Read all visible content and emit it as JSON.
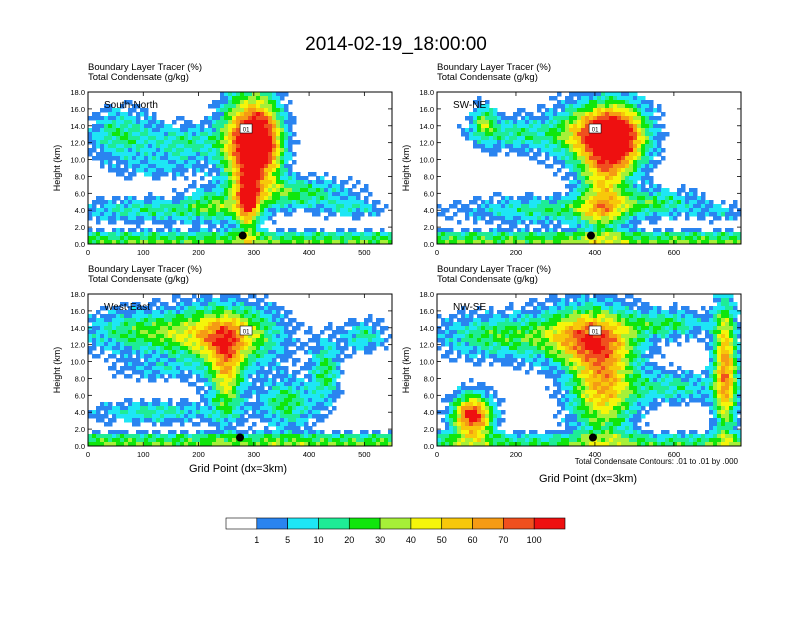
{
  "title": "2014-02-19_18:00:00",
  "panel_label_top": "Boundary Layer Tracer   (%)",
  "panel_label_bottom": "Total Condensate   (g/kg)",
  "ylabel": "Height (km)",
  "xlabel": "Grid Point (dx=3km)",
  "contour_note": "Total Condensate Contours: .01 to .01 by .000",
  "contour_label": "01",
  "colors": {
    "white": "#ffffff",
    "blue": "#2a84f0",
    "cyan": "#1ee6f5",
    "teal": "#1eec96",
    "green": "#10e60c",
    "lime": "#a6f038",
    "yellow": "#f5f50a",
    "gold": "#f7c80a",
    "orange": "#f59b14",
    "red_orange": "#f0501e",
    "red": "#ee1010"
  },
  "colorbar": {
    "labels": [
      "1",
      "5",
      "10",
      "20",
      "30",
      "40",
      "50",
      "60",
      "70",
      "100"
    ],
    "colors": [
      "#ffffff",
      "#2a84f0",
      "#1ee6f5",
      "#1eec96",
      "#10e60c",
      "#a6f038",
      "#f5f50a",
      "#f7c80a",
      "#f59b14",
      "#f0501e",
      "#ee1010"
    ]
  },
  "chart_data": [
    {
      "type": "heatmap",
      "name": "South-North",
      "xlim": [
        0,
        550
      ],
      "ylim": [
        0,
        18
      ],
      "xticks": [
        "0",
        "100",
        "200",
        "300",
        "400",
        "500"
      ],
      "xtick_values": [
        0,
        100,
        200,
        300,
        400,
        500
      ],
      "yticks": [
        "0.0",
        "2.0",
        "4.0",
        "6.0",
        "8.0",
        "10.0",
        "12.0",
        "14.0",
        "16.0",
        "18.0"
      ],
      "ytick_values": [
        0,
        2,
        4,
        6,
        8,
        10,
        12,
        14,
        16,
        18
      ],
      "marker": {
        "x": 280,
        "y": 1.0
      },
      "features": [
        {
          "type": "layer",
          "y0": 0.1,
          "y1": 1.2,
          "x0": 0,
          "x1": 550,
          "amp": 3
        },
        {
          "type": "blob",
          "x": 60,
          "y": 13,
          "rx": 60,
          "ry": 3,
          "amp": 2.2
        },
        {
          "type": "blob",
          "x": 180,
          "y": 12,
          "rx": 70,
          "ry": 2.2,
          "amp": 2.0
        },
        {
          "type": "blob",
          "x": 130,
          "y": 9,
          "rx": 80,
          "ry": 1.3,
          "amp": 1.0
        },
        {
          "type": "blob",
          "x": 100,
          "y": 4,
          "rx": 120,
          "ry": 1.4,
          "amp": 2.0
        },
        {
          "type": "blob",
          "x": 230,
          "y": 4.5,
          "rx": 60,
          "ry": 2,
          "amp": 2.2
        },
        {
          "type": "blob",
          "x": 280,
          "y": 12,
          "rx": 40,
          "ry": 6,
          "amp": 5
        },
        {
          "type": "blob",
          "x": 320,
          "y": 12,
          "rx": 35,
          "ry": 5,
          "amp": 5.5
        },
        {
          "type": "blob",
          "x": 290,
          "y": 5,
          "rx": 20,
          "ry": 4,
          "amp": 4
        },
        {
          "type": "blob",
          "x": 380,
          "y": 6,
          "rx": 90,
          "ry": 1.8,
          "amp": 2.5
        },
        {
          "type": "blob",
          "x": 480,
          "y": 4.2,
          "rx": 50,
          "ry": 1,
          "amp": 1.6
        }
      ]
    },
    {
      "type": "heatmap",
      "name": "SW-NE",
      "xlim": [
        0,
        770
      ],
      "ylim": [
        0,
        18
      ],
      "xticks": [
        "0",
        "200",
        "400",
        "600"
      ],
      "xtick_values": [
        0,
        200,
        400,
        600
      ],
      "yticks": [
        "0.0",
        "2.0",
        "4.0",
        "6.0",
        "8.0",
        "10.0",
        "12.0",
        "14.0",
        "16.0",
        "18.0"
      ],
      "ytick_values": [
        0,
        2,
        4,
        6,
        8,
        10,
        12,
        14,
        16,
        18
      ],
      "marker": {
        "x": 390,
        "y": 1.0
      },
      "features": [
        {
          "type": "layer",
          "y0": 0.1,
          "y1": 1.4,
          "x0": 0,
          "x1": 770,
          "amp": 3
        },
        {
          "type": "blob",
          "x": 200,
          "y": 13,
          "rx": 110,
          "ry": 2,
          "amp": 2.0
        },
        {
          "type": "blob",
          "x": 120,
          "y": 14.5,
          "rx": 30,
          "ry": 2,
          "amp": 2.5
        },
        {
          "type": "blob",
          "x": 400,
          "y": 13,
          "rx": 100,
          "ry": 3.5,
          "amp": 4.5
        },
        {
          "type": "blob",
          "x": 460,
          "y": 12.5,
          "rx": 70,
          "ry": 4,
          "amp": 5
        },
        {
          "type": "blob",
          "x": 420,
          "y": 6,
          "rx": 60,
          "ry": 5,
          "amp": 3.5
        },
        {
          "type": "blob",
          "x": 300,
          "y": 4,
          "rx": 230,
          "ry": 1.6,
          "amp": 2.2
        },
        {
          "type": "blob",
          "x": 560,
          "y": 5,
          "rx": 110,
          "ry": 1.5,
          "amp": 2.0
        },
        {
          "type": "blob",
          "x": 720,
          "y": 3.8,
          "rx": 60,
          "ry": 1,
          "amp": 1.2
        }
      ]
    },
    {
      "type": "heatmap",
      "name": "West-East",
      "xlim": [
        0,
        550
      ],
      "ylim": [
        0,
        18
      ],
      "xticks": [
        "0",
        "100",
        "200",
        "300",
        "400",
        "500"
      ],
      "xtick_values": [
        0,
        100,
        200,
        300,
        400,
        500
      ],
      "yticks": [
        "0.0",
        "2.0",
        "4.0",
        "6.0",
        "8.0",
        "10.0",
        "12.0",
        "14.0",
        "16.0",
        "18.0"
      ],
      "ytick_values": [
        0,
        2,
        4,
        6,
        8,
        10,
        12,
        14,
        16,
        18
      ],
      "marker": {
        "x": 275,
        "y": 1.0
      },
      "features": [
        {
          "type": "layer",
          "y0": 0.1,
          "y1": 1.4,
          "x0": 0,
          "x1": 550,
          "amp": 3
        },
        {
          "type": "blob",
          "x": 100,
          "y": 13.5,
          "rx": 110,
          "ry": 2.5,
          "amp": 2.5
        },
        {
          "type": "blob",
          "x": 250,
          "y": 13,
          "rx": 90,
          "ry": 3.5,
          "amp": 4.5
        },
        {
          "type": "blob",
          "x": 250,
          "y": 8,
          "rx": 30,
          "ry": 5,
          "amp": 3.5
        },
        {
          "type": "blob",
          "x": 120,
          "y": 4,
          "rx": 110,
          "ry": 1.3,
          "amp": 2.0
        },
        {
          "type": "blob",
          "x": 360,
          "y": 5,
          "rx": 50,
          "ry": 3,
          "amp": 2.5
        },
        {
          "type": "blob",
          "x": 430,
          "y": 9,
          "rx": 25,
          "ry": 3.5,
          "amp": 2.5
        },
        {
          "type": "blob",
          "x": 500,
          "y": 13,
          "rx": 40,
          "ry": 1.8,
          "amp": 2.0
        },
        {
          "type": "blob",
          "x": 120,
          "y": 9,
          "rx": 70,
          "ry": 1.2,
          "amp": 1.2
        }
      ]
    },
    {
      "type": "heatmap",
      "name": "NW-SE",
      "xlim": [
        0,
        770
      ],
      "ylim": [
        0,
        18
      ],
      "xticks": [
        "0",
        "200",
        "400",
        "600"
      ],
      "xtick_values": [
        0,
        200,
        400,
        600
      ],
      "yticks": [
        "0.0",
        "2.0",
        "4.0",
        "6.0",
        "8.0",
        "10.0",
        "12.0",
        "14.0",
        "16.0",
        "18.0"
      ],
      "ytick_values": [
        0,
        2,
        4,
        6,
        8,
        10,
        12,
        14,
        16,
        18
      ],
      "marker": {
        "x": 395,
        "y": 1.0
      },
      "features": [
        {
          "type": "layer",
          "y0": 0.1,
          "y1": 1.2,
          "x0": 0,
          "x1": 770,
          "amp": 2.5
        },
        {
          "type": "blob",
          "x": 150,
          "y": 13,
          "rx": 150,
          "ry": 2.5,
          "amp": 2.5
        },
        {
          "type": "blob",
          "x": 380,
          "y": 13,
          "rx": 120,
          "ry": 3.5,
          "amp": 4.5
        },
        {
          "type": "blob",
          "x": 420,
          "y": 7,
          "rx": 80,
          "ry": 6,
          "amp": 4.5
        },
        {
          "type": "blob",
          "x": 90,
          "y": 3.5,
          "rx": 50,
          "ry": 2.5,
          "amp": 6.5
        },
        {
          "type": "blob",
          "x": 730,
          "y": 9,
          "rx": 30,
          "ry": 8,
          "amp": 5
        },
        {
          "type": "blob",
          "x": 600,
          "y": 7,
          "rx": 110,
          "ry": 1.8,
          "amp": 2.0
        },
        {
          "type": "blob",
          "x": 590,
          "y": 14.5,
          "rx": 100,
          "ry": 1.6,
          "amp": 2.2
        }
      ]
    }
  ]
}
